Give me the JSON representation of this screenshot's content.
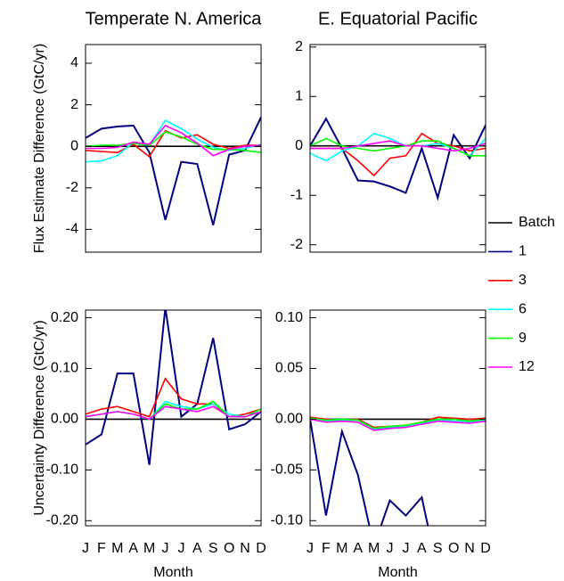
{
  "chart_data": [
    {
      "type": "line",
      "title": "Temperate N. America",
      "ylabel": "Flux Estimate Difference (GtC/yr)",
      "ylim": [
        -5.1,
        4.9
      ],
      "yticks": [
        4,
        2,
        0,
        -2,
        -4
      ],
      "legend": "right",
      "series": [
        {
          "name": "Batch",
          "color": "#000000",
          "values": [
            0,
            0,
            0,
            0,
            0,
            0,
            0,
            0,
            0,
            0,
            0,
            0
          ]
        },
        {
          "name": "1",
          "color": "#000080",
          "values": [
            0.4,
            0.85,
            0.95,
            1.0,
            -0.3,
            -3.55,
            -0.75,
            -0.85,
            -3.8,
            -0.4,
            -0.2,
            1.4
          ]
        },
        {
          "name": "3",
          "color": "#ff0000",
          "values": [
            -0.2,
            -0.25,
            -0.3,
            0.1,
            -0.5,
            0.75,
            0.4,
            0.55,
            0.1,
            -0.1,
            0.05,
            0.05
          ]
        },
        {
          "name": "6",
          "color": "#00ffff",
          "values": [
            -0.75,
            -0.7,
            -0.45,
            0.2,
            0.05,
            1.25,
            0.85,
            0.35,
            -0.05,
            -0.2,
            -0.1,
            0.1
          ]
        },
        {
          "name": "9",
          "color": "#00ff00",
          "values": [
            0,
            0.05,
            0.05,
            0.15,
            0.05,
            0.7,
            0.45,
            0.1,
            -0.15,
            -0.15,
            -0.2,
            -0.3
          ]
        },
        {
          "name": "12",
          "color": "#ff00ff",
          "values": [
            -0.1,
            -0.1,
            -0.05,
            0.2,
            0.1,
            1.0,
            0.65,
            0.15,
            -0.45,
            -0.15,
            0,
            0.05
          ]
        }
      ]
    },
    {
      "type": "line",
      "title": "E. Equatorial Pacific",
      "ylim": [
        -2.15,
        2.05
      ],
      "yticks": [
        2,
        1,
        0,
        -1,
        -2
      ],
      "series": [
        {
          "color": "#000000",
          "values": [
            0,
            0,
            0,
            0,
            0,
            0,
            0,
            0,
            0,
            0,
            0,
            0
          ]
        },
        {
          "color": "#000080",
          "values": [
            0,
            0.55,
            -0.05,
            -0.7,
            -0.72,
            -0.82,
            -0.95,
            -0.05,
            -1.05,
            0.22,
            -0.25,
            0.42
          ]
        },
        {
          "color": "#ff0000",
          "values": [
            -0.05,
            -0.05,
            -0.05,
            -0.3,
            -0.6,
            -0.25,
            -0.2,
            0.25,
            0.05,
            0,
            -0.1,
            -0.05
          ]
        },
        {
          "color": "#00ffff",
          "values": [
            -0.15,
            -0.3,
            -0.1,
            0,
            0.25,
            0.15,
            0,
            0,
            0.05,
            -0.05,
            -0.2,
            0.15
          ]
        },
        {
          "color": "#00ff00",
          "values": [
            0,
            0.15,
            0,
            -0.05,
            -0.1,
            -0.05,
            0,
            0.1,
            0.1,
            -0.05,
            -0.2,
            -0.2
          ]
        },
        {
          "color": "#ff00ff",
          "values": [
            -0.05,
            -0.05,
            -0.05,
            0,
            0.05,
            0.1,
            0,
            0,
            -0.05,
            -0.1,
            -0.05,
            0.05
          ]
        }
      ]
    },
    {
      "type": "line",
      "ylabel": "Uncertainty Difference (GtC/yr)",
      "xlabel": "Month",
      "categories": [
        "J",
        "F",
        "M",
        "A",
        "M",
        "J",
        "J",
        "A",
        "S",
        "O",
        "N",
        "D"
      ],
      "ylim": [
        -0.21,
        0.215
      ],
      "yticks": [
        {
          "value": 0.2,
          "label": "0.20"
        },
        {
          "value": 0.1,
          "label": "0.10"
        },
        {
          "value": 0,
          "label": "0.00"
        },
        {
          "value": -0.1,
          "label": "-0.10"
        },
        {
          "value": -0.2,
          "label": "-0.20"
        }
      ],
      "series": [
        {
          "color": "#000000",
          "values": [
            0,
            0,
            0,
            0,
            0,
            0,
            0,
            0,
            0,
            0,
            0,
            0
          ]
        },
        {
          "color": "#000080",
          "values": [
            -0.05,
            -0.03,
            0.09,
            0.09,
            -0.09,
            0.22,
            0.005,
            0.03,
            0.16,
            -0.02,
            -0.01,
            0.015
          ]
        },
        {
          "color": "#ff0000",
          "values": [
            0.01,
            0.02,
            0.025,
            0.015,
            0.005,
            0.08,
            0.04,
            0.03,
            0.03,
            0.005,
            0.01,
            0.02
          ]
        },
        {
          "color": "#00ffff",
          "values": [
            0.005,
            0.01,
            0.015,
            0.01,
            0,
            0.035,
            0.025,
            0.02,
            0.03,
            0.01,
            0.005,
            0.015
          ]
        },
        {
          "color": "#00ff00",
          "values": [
            0.005,
            0.01,
            0.015,
            0.01,
            0,
            0.03,
            0.02,
            0.02,
            0.035,
            0.005,
            0.005,
            0.02
          ]
        },
        {
          "color": "#ff00ff",
          "values": [
            0.005,
            0.01,
            0.015,
            0.01,
            0,
            0.025,
            0.02,
            0.015,
            0.025,
            0.005,
            0.005,
            0.015
          ]
        }
      ]
    },
    {
      "type": "line",
      "xlabel": "Month",
      "categories": [
        "J",
        "F",
        "M",
        "A",
        "M",
        "J",
        "J",
        "A",
        "S",
        "O",
        "N",
        "D"
      ],
      "ylim": [
        -0.105,
        0.1075
      ],
      "yticks": [
        {
          "value": 0.1,
          "label": "0.10"
        },
        {
          "value": 0.05,
          "label": "0.05"
        },
        {
          "value": 0,
          "label": "0.00"
        },
        {
          "value": -0.05,
          "label": "-0.05"
        },
        {
          "value": -0.1,
          "label": "-0.10"
        }
      ],
      "series": [
        {
          "color": "#000000",
          "values": [
            0,
            0,
            0,
            0,
            0,
            0,
            0,
            0,
            0,
            0,
            0,
            0
          ]
        },
        {
          "color": "#000080",
          "values": [
            0,
            -0.095,
            -0.012,
            -0.055,
            -0.125,
            -0.08,
            -0.095,
            -0.077,
            -0.15,
            null,
            null,
            null
          ]
        },
        {
          "color": "#ff0000",
          "values": [
            0.002,
            0,
            -0.001,
            0,
            -0.008,
            -0.007,
            -0.006,
            -0.003,
            0.002,
            0.001,
            0,
            0.001
          ]
        },
        {
          "color": "#00ffff",
          "values": [
            0,
            -0.002,
            -0.001,
            -0.001,
            -0.01,
            -0.008,
            -0.007,
            -0.004,
            -0.001,
            -0.002,
            -0.003,
            -0.001
          ]
        },
        {
          "color": "#00ff00",
          "values": [
            0.001,
            -0.001,
            0,
            -0.001,
            -0.009,
            -0.007,
            -0.006,
            -0.003,
            0,
            0,
            -0.002,
            0
          ]
        },
        {
          "color": "#ff00ff",
          "values": [
            0,
            -0.003,
            -0.002,
            -0.003,
            -0.011,
            -0.009,
            -0.008,
            -0.005,
            -0.002,
            -0.003,
            -0.004,
            -0.002
          ]
        }
      ]
    }
  ]
}
